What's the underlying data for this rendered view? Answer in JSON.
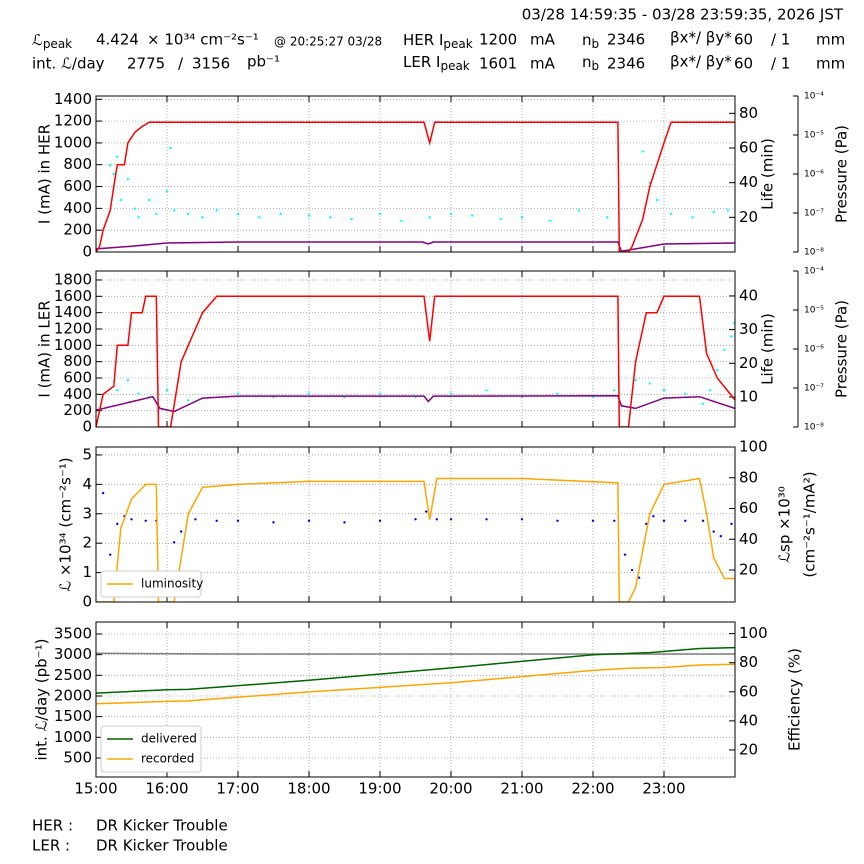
{
  "header": {
    "range": "03/28 14:59:35 - 03/28 23:59:35, 2026 JST",
    "l_symbol": "ℒ",
    "l_sub": "peak",
    "l_value": "4.424",
    "l_unit": "× 10³⁴ cm⁻²s⁻¹",
    "l_time": "@ 20:25:27 03/28",
    "her_label": "HER I",
    "her_sub": "peak",
    "her_value": "1200",
    "her_unit": "mA",
    "her_nb": "n",
    "her_nb_sub": "b",
    "her_nb_value": "2346",
    "her_beta": "βx*/ βy*",
    "her_beta_x": "60",
    "her_beta_y": "/ 1",
    "her_beta_unit": "mm",
    "int_label": "int. ℒ/day",
    "int_delivered": "2775",
    "int_sep": "/",
    "int_total": "3156",
    "int_unit": "pb⁻¹",
    "ler_label": "LER I",
    "ler_sub": "peak",
    "ler_value": "1601",
    "ler_unit": "mA",
    "ler_nb": "n",
    "ler_nb_sub": "b",
    "ler_nb_value": "2346",
    "ler_beta": "βx*/ βy*",
    "ler_beta_x": "60",
    "ler_beta_y": "/ 1",
    "ler_beta_unit": "mm"
  },
  "footer": {
    "her_label": "HER :",
    "her_text": "DR Kicker Trouble",
    "ler_label": "LER :",
    "ler_text": "DR Kicker Trouble"
  },
  "chart_data": [
    {
      "type": "line",
      "ylabel": "I (mA) in HER",
      "y2label": "Life (min)",
      "y3label": "Pressure (Pa)",
      "xlim": [
        15,
        24
      ],
      "xticks": [
        15,
        16,
        17,
        18,
        19,
        20,
        21,
        22,
        23
      ],
      "ylim": [
        0,
        1430
      ],
      "yticks": [
        0,
        200,
        400,
        600,
        800,
        1000,
        1200,
        1400
      ],
      "y2lim": [
        0,
        90
      ],
      "y2ticks": [
        20,
        40,
        60,
        80
      ],
      "y3lim": [
        1e-08,
        0.0001
      ],
      "y3log": true,
      "y3ticks": [
        {
          "value": 1e-08,
          "label": "10⁻⁸"
        },
        {
          "value": 1e-07,
          "label": "10⁻⁷"
        },
        {
          "value": 1e-06,
          "label": "10⁻⁶"
        },
        {
          "value": 1e-05,
          "label": "10⁻⁵"
        },
        {
          "value": 0.0001,
          "label": "10⁻⁴"
        }
      ],
      "grid": true,
      "series": [
        {
          "color": "#00ffff",
          "axis": "y2",
          "mode": "markers",
          "x": [
            15.2,
            15.25,
            15.3,
            15.35,
            15.45,
            15.55,
            15.6,
            15.75,
            15.85,
            16.0,
            16.05,
            16.1,
            16.3,
            16.5,
            16.7,
            17.0,
            17.3,
            17.6,
            18.0,
            18.3,
            18.6,
            19.0,
            19.3,
            19.7,
            20.0,
            20.3,
            20.7,
            21.0,
            21.4,
            21.8,
            22.2,
            22.7,
            22.8,
            22.9,
            23.1,
            23.4,
            23.7,
            23.9
          ],
          "values": [
            50,
            45,
            55,
            30,
            42,
            25,
            20,
            30,
            22,
            35,
            60,
            24,
            22,
            20,
            24,
            22,
            20,
            22,
            21,
            20,
            19,
            22,
            18,
            20,
            22,
            21,
            19,
            20,
            18,
            24,
            20,
            58,
            40,
            30,
            22,
            20,
            23,
            24
          ]
        },
        {
          "color": "#800080",
          "axis": "y3",
          "x": [
            15,
            15.5,
            16,
            17,
            19.6,
            19.68,
            19.75,
            22.35,
            22.4,
            22.6,
            23,
            24
          ],
          "values": [
            1.2e-08,
            1.4e-08,
            1.7e-08,
            1.8e-08,
            1.8e-08,
            1.6e-08,
            1.8e-08,
            1.8e-08,
            1.05e-08,
            1.2e-08,
            1.6e-08,
            1.7e-08
          ]
        },
        {
          "color": "#ff0000",
          "axis": "y",
          "x": [
            15,
            15.05,
            15.1,
            15.2,
            15.25,
            15.3,
            15.4,
            15.45,
            15.55,
            15.65,
            15.75,
            19.62,
            19.7,
            19.77,
            22.35,
            22.37,
            22.5,
            22.55,
            22.7,
            22.8,
            22.9,
            23.0,
            23.1,
            24
          ],
          "values": [
            0,
            50,
            200,
            380,
            600,
            800,
            800,
            1000,
            1100,
            1150,
            1190,
            1190,
            1000,
            1190,
            1190,
            0,
            0,
            50,
            300,
            600,
            800,
            1000,
            1190,
            1190
          ]
        }
      ]
    },
    {
      "type": "line",
      "ylabel": "I (mA) in LER",
      "y2label": "Life (min)",
      "y3label": "Pressure (Pa)",
      "xlim": [
        15,
        24
      ],
      "xticks": [
        15,
        16,
        17,
        18,
        19,
        20,
        21,
        22,
        23
      ],
      "ylim": [
        0,
        1910
      ],
      "yticks": [
        0,
        200,
        400,
        600,
        800,
        1000,
        1200,
        1400,
        1600,
        1800
      ],
      "y2lim": [
        1.1,
        47.4
      ],
      "y2ticks": [
        10,
        20,
        30,
        40
      ],
      "y3lim": [
        1e-08,
        0.0001
      ],
      "y3log": true,
      "y3ticks": [
        {
          "value": 1e-08,
          "label": "10⁻⁸"
        },
        {
          "value": 1e-07,
          "label": "10⁻⁷"
        },
        {
          "value": 1e-06,
          "label": "10⁻⁶"
        },
        {
          "value": 1e-05,
          "label": "10⁻⁵"
        },
        {
          "value": 0.0001,
          "label": "10⁻⁴"
        }
      ],
      "grid": true,
      "series": [
        {
          "color": "#00ffff",
          "axis": "y2",
          "mode": "markers",
          "x": [
            15.0,
            15.3,
            15.45,
            15.6,
            15.75,
            16.0,
            16.3,
            17.0,
            17.5,
            18.0,
            18.5,
            19.0,
            19.5,
            20.0,
            20.5,
            21.0,
            21.5,
            22.0,
            22.3,
            22.6,
            22.8,
            23.0,
            23.3,
            23.55,
            23.65,
            23.75,
            23.85,
            23.95,
            23.99
          ],
          "values": [
            10,
            12,
            15,
            11,
            10,
            12,
            9,
            11,
            10,
            11,
            10,
            11,
            10,
            11,
            12,
            10,
            11,
            10,
            12,
            15,
            14,
            12,
            11,
            8,
            12,
            18,
            24,
            28,
            32
          ]
        },
        {
          "color": "#800080",
          "axis": "y3",
          "x": [
            15,
            15.8,
            15.9,
            16.1,
            16.5,
            17,
            19.62,
            19.68,
            19.75,
            22.35,
            22.4,
            22.6,
            23,
            23.5,
            24
          ],
          "values": [
            2.7e-08,
            6e-08,
            3e-08,
            2.5e-08,
            5.5e-08,
            6.2e-08,
            6.2e-08,
            4.5e-08,
            6.2e-08,
            6.3e-08,
            3.5e-08,
            3e-08,
            5.5e-08,
            6e-08,
            3e-08
          ]
        },
        {
          "color": "#ff0000",
          "axis": "y",
          "x": [
            15,
            15.1,
            15.25,
            15.3,
            15.45,
            15.5,
            15.65,
            15.7,
            15.85,
            15.88,
            16.05,
            16.2,
            16.3,
            16.5,
            16.7,
            19.62,
            19.7,
            19.77,
            22.35,
            22.37,
            22.5,
            22.6,
            22.75,
            22.9,
            23.0,
            23.5,
            23.6,
            23.75,
            24
          ],
          "values": [
            0,
            400,
            500,
            1000,
            1000,
            1400,
            1400,
            1600,
            1600,
            0,
            0,
            800,
            1000,
            1400,
            1600,
            1600,
            1050,
            1600,
            1600,
            0,
            0,
            800,
            1400,
            1400,
            1600,
            1600,
            900,
            600,
            330
          ]
        }
      ]
    },
    {
      "type": "line",
      "ylabel": "ℒ ×10³⁴ (cm⁻²s⁻¹)",
      "y2label": [
        "ℒsp ×10³⁰",
        "(cm⁻²s⁻¹/mA²)"
      ],
      "xlim": [
        15,
        24
      ],
      "xticks": [
        15,
        16,
        17,
        18,
        19,
        20,
        21,
        22,
        23
      ],
      "ylim": [
        0,
        5.27
      ],
      "yticks": [
        0,
        1,
        2,
        3,
        4,
        5
      ],
      "y2lim": [
        -0.8,
        100
      ],
      "y2ticks": [
        20,
        40,
        60,
        80,
        100
      ],
      "grid": true,
      "legend": "lower left",
      "series": [
        {
          "color": "#0000ff",
          "axis": "y2",
          "mode": "markers",
          "x": [
            15.1,
            15.2,
            15.3,
            15.4,
            15.5,
            15.7,
            15.85,
            16.1,
            16.2,
            16.4,
            16.7,
            17.0,
            17.5,
            18.0,
            18.5,
            19.0,
            19.5,
            19.65,
            19.8,
            20.0,
            20.5,
            21.0,
            21.5,
            22.0,
            22.3,
            22.45,
            22.55,
            22.65,
            22.75,
            22.85,
            23.0,
            23.3,
            23.55,
            23.7,
            23.8,
            23.95
          ],
          "values": [
            70,
            30,
            50,
            55,
            53,
            52,
            52,
            38,
            45,
            53,
            52,
            52,
            51,
            52,
            51,
            52,
            53,
            58,
            53,
            53,
            53,
            53,
            52,
            52,
            52,
            30,
            20,
            15,
            50,
            55,
            52,
            52,
            52,
            45,
            42,
            50
          ]
        },
        {
          "name": "luminosity",
          "color": "#ffa500",
          "axis": "y",
          "x": [
            15,
            15.25,
            15.35,
            15.5,
            15.7,
            15.85,
            15.88,
            16.1,
            16.3,
            16.5,
            17,
            18,
            19.62,
            19.7,
            19.8,
            21,
            22.35,
            22.37,
            22.5,
            22.6,
            22.8,
            23.0,
            23.5,
            23.6,
            23.7,
            23.85,
            24
          ],
          "values": [
            0,
            0,
            2.5,
            3.5,
            4.0,
            4.0,
            0,
            0,
            3.0,
            3.9,
            4.0,
            4.1,
            4.1,
            2.8,
            4.2,
            4.2,
            4.05,
            0,
            0,
            0.5,
            3.0,
            4.0,
            4.2,
            3.0,
            1.5,
            0.8,
            0.8
          ]
        }
      ]
    },
    {
      "type": "line",
      "ylabel": "int. ℒ/day (pb⁻¹)",
      "y2label": "Efficiency (%)",
      "xlim": [
        15,
        24
      ],
      "xticks": [
        {
          "value": 15,
          "label": "15:00"
        },
        {
          "value": 16,
          "label": "16:00"
        },
        {
          "value": 17,
          "label": "17:00"
        },
        {
          "value": 18,
          "label": "18:00"
        },
        {
          "value": 19,
          "label": "19:00"
        },
        {
          "value": 20,
          "label": "20:00"
        },
        {
          "value": 21,
          "label": "21:00"
        },
        {
          "value": 22,
          "label": "22:00"
        },
        {
          "value": 23,
          "label": "23:00"
        }
      ],
      "ylim": [
        40,
        3790
      ],
      "yticks": [
        500,
        1000,
        1500,
        2000,
        2500,
        3000,
        3500
      ],
      "y2lim": [
        1.4,
        108
      ],
      "y2ticks": [
        20,
        40,
        60,
        80,
        100
      ],
      "grid": true,
      "legend": "lower left",
      "series": [
        {
          "color": "#808080",
          "axis": "y2",
          "x": [
            15,
            17,
            20,
            22,
            24
          ],
          "values": [
            86.5,
            86,
            86,
            86,
            86
          ]
        },
        {
          "name": "delivered",
          "color": "#006400",
          "axis": "y",
          "x": [
            15,
            16,
            16.3,
            18,
            20,
            22,
            22.8,
            23.5,
            24
          ],
          "values": [
            2070,
            2150,
            2160,
            2380,
            2680,
            3000,
            3050,
            3150,
            3170
          ]
        },
        {
          "name": "recorded",
          "color": "#ffa500",
          "axis": "y",
          "x": [
            15,
            16,
            16.3,
            18,
            20,
            22,
            22.5,
            23,
            23.5,
            24
          ],
          "values": [
            1810,
            1870,
            1880,
            2100,
            2320,
            2620,
            2670,
            2690,
            2750,
            2770
          ]
        }
      ]
    }
  ]
}
